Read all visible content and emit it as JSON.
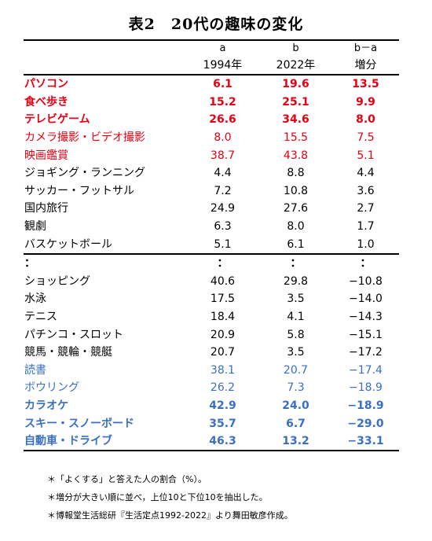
{
  "title": "表2　20代の趣味の変化",
  "header": {
    "col_a_letter": "a",
    "col_b_letter": "b",
    "col_diff_letter": "b－a",
    "col_a_year": "1994年",
    "col_b_year": "2022年",
    "col_diff_label": "増分"
  },
  "colors": {
    "red": "#e60012",
    "blue": "#3a6fc2",
    "black": "#000000"
  },
  "rows": [
    {
      "name": "パソコン",
      "a": "6.1",
      "b": "19.6",
      "diff": "13.5",
      "color": "red",
      "bold": true
    },
    {
      "name": "食べ歩き",
      "a": "15.2",
      "b": "25.1",
      "diff": "9.9",
      "color": "red",
      "bold": true
    },
    {
      "name": "テレビゲーム",
      "a": "26.6",
      "b": "34.6",
      "diff": "8.0",
      "color": "red",
      "bold": true
    },
    {
      "name": "カメラ撮影・ビデオ撮影",
      "a": "8.0",
      "b": "15.5",
      "diff": "7.5",
      "color": "red",
      "bold": false
    },
    {
      "name": "映画鑑賞",
      "a": "38.7",
      "b": "43.8",
      "diff": "5.1",
      "color": "red",
      "bold": false
    },
    {
      "name": "ジョギング・ランニング",
      "a": "4.4",
      "b": "8.8",
      "diff": "4.4",
      "color": "black",
      "bold": false
    },
    {
      "name": "サッカー・フットサル",
      "a": "7.2",
      "b": "10.8",
      "diff": "3.6",
      "color": "black",
      "bold": false
    },
    {
      "name": "国内旅行",
      "a": "24.9",
      "b": "27.6",
      "diff": "2.7",
      "color": "black",
      "bold": false
    },
    {
      "name": "観劇",
      "a": "6.3",
      "b": "8.0",
      "diff": "1.7",
      "color": "black",
      "bold": false
    },
    {
      "name": "バスケットボール",
      "a": "5.1",
      "b": "6.1",
      "diff": "1.0",
      "color": "black",
      "bold": false
    },
    {
      "name": "：",
      "a": "：",
      "b": "：",
      "diff": "：",
      "color": "black",
      "bold": true
    },
    {
      "name": "ショッピング",
      "a": "40.6",
      "b": "29.8",
      "diff": "−10.8",
      "color": "black",
      "bold": false
    },
    {
      "name": "水泳",
      "a": "17.5",
      "b": "3.5",
      "diff": "−14.0",
      "color": "black",
      "bold": false
    },
    {
      "name": "テニス",
      "a": "18.4",
      "b": "4.1",
      "diff": "−14.3",
      "color": "black",
      "bold": false
    },
    {
      "name": "パチンコ・スロット",
      "a": "20.9",
      "b": "5.8",
      "diff": "−15.1",
      "color": "black",
      "bold": false
    },
    {
      "name": "競馬・競輪・競艇",
      "a": "20.7",
      "b": "3.5",
      "diff": "−17.2",
      "color": "black",
      "bold": false
    },
    {
      "name": "読書",
      "a": "38.1",
      "b": "20.7",
      "diff": "−17.4",
      "color": "blue",
      "bold": false
    },
    {
      "name": "ボウリング",
      "a": "26.2",
      "b": "7.3",
      "diff": "−18.9",
      "color": "blue",
      "bold": false
    },
    {
      "name": "カラオケ",
      "a": "42.9",
      "b": "24.0",
      "diff": "−18.9",
      "color": "blue",
      "bold": true
    },
    {
      "name": "スキー・スノーボード",
      "a": "35.7",
      "b": "6.7",
      "diff": "−29.0",
      "color": "blue",
      "bold": true
    },
    {
      "name": "自動車・ドライブ",
      "a": "46.3",
      "b": "13.2",
      "diff": "−33.1",
      "color": "blue",
      "bold": true
    }
  ],
  "notes": [
    "＊「よくする」と答えた人の割合（%）。",
    "＊増分が大きい順に並べ，上位10と下位10を抽出した。",
    "＊博報堂生活総研『生活定点1992-2022』より舞田敏彦作成。"
  ]
}
